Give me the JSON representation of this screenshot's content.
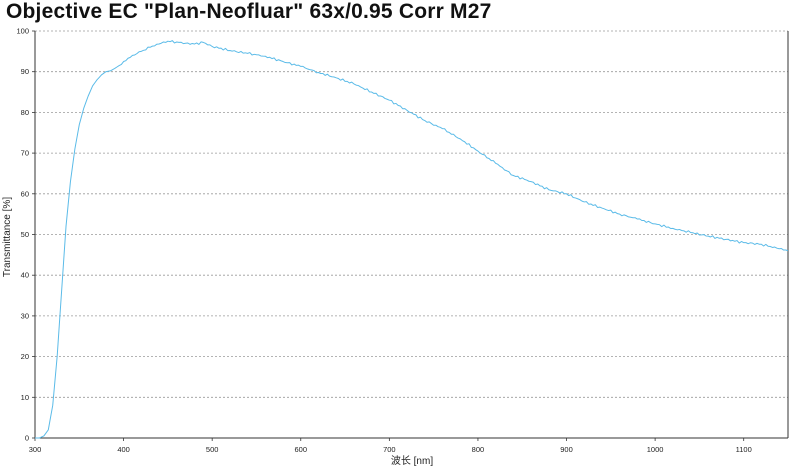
{
  "chart_data": {
    "type": "line",
    "title": "Objective EC \"Plan-Neofluar\" 63x/0.95 Corr M27",
    "xlabel": "波长 [nm]",
    "ylabel": "Transmittance [%]",
    "xlim": [
      300,
      1150
    ],
    "ylim": [
      0,
      100
    ],
    "x_ticks": [
      300,
      400,
      500,
      600,
      700,
      800,
      900,
      1000,
      1100
    ],
    "y_ticks": [
      0,
      10,
      20,
      30,
      40,
      50,
      60,
      70,
      80,
      90,
      100
    ],
    "grid": "horizontal-dotted",
    "line_color": "#5bbbe8",
    "series": [
      {
        "x": [
          300,
          305,
          310,
          315,
          320,
          325,
          330,
          335,
          340,
          345,
          350,
          355,
          360,
          365,
          370,
          375,
          380,
          385,
          390,
          395,
          400,
          410,
          420,
          430,
          440,
          450,
          460,
          470,
          480,
          490,
          500,
          520,
          540,
          560,
          580,
          600,
          620,
          640,
          660,
          680,
          700,
          720,
          740,
          760,
          780,
          800,
          820,
          840,
          860,
          880,
          900,
          920,
          940,
          960,
          980,
          1000,
          1020,
          1040,
          1060,
          1080,
          1100,
          1120,
          1140,
          1150
        ],
        "y": [
          0,
          0,
          0.5,
          2,
          8,
          20,
          36,
          52,
          63,
          71,
          77,
          81,
          84,
          86.5,
          88,
          89.2,
          90,
          90.2,
          90.8,
          91.5,
          92.5,
          94,
          95,
          96,
          96.8,
          97.5,
          97.3,
          97,
          96.8,
          97.2,
          96.2,
          95.2,
          94.5,
          93.8,
          92.5,
          91.3,
          89.8,
          88.5,
          87,
          85,
          83,
          80.5,
          78,
          76,
          73.5,
          70.5,
          67.5,
          64.5,
          63,
          61,
          60,
          58,
          56.5,
          55,
          53.8,
          52.6,
          51.5,
          50.5,
          49.6,
          48.8,
          48,
          47.6,
          46.5,
          46
        ]
      }
    ]
  }
}
